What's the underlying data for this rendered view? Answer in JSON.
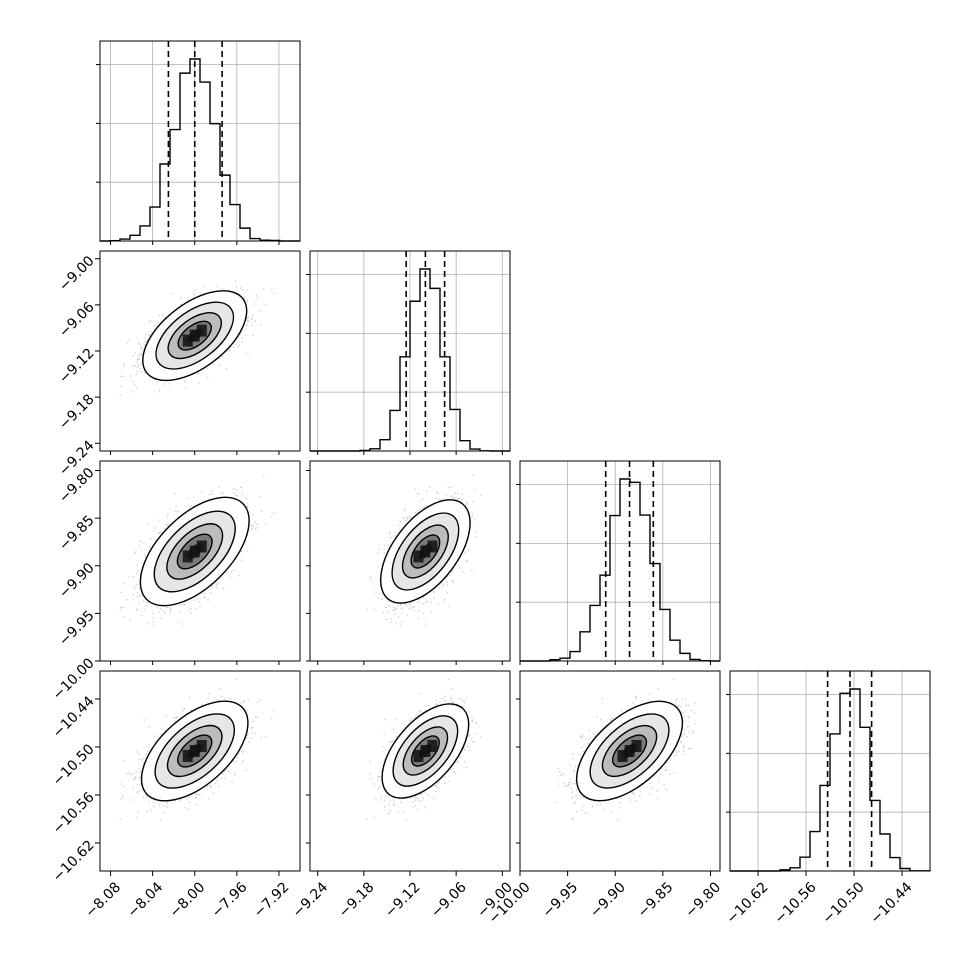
{
  "chart_data": {
    "type": "corner",
    "grid": true,
    "parameters": [
      {
        "range": [
          -8.09,
          -7.9
        ],
        "ticks": [
          -8.08,
          -8.04,
          -8.0,
          -7.96,
          -7.92
        ],
        "tick_labels": [
          "−8.08",
          "−8.04",
          "−8.00",
          "−7.96",
          "−7.92"
        ],
        "mean": -8.0,
        "std": 0.0205,
        "quantiles": [
          -8.025,
          -8.0,
          -7.974
        ]
      },
      {
        "range": [
          -9.25,
          -8.99
        ],
        "ticks": [
          -9.24,
          -9.18,
          -9.12,
          -9.06,
          -9.0
        ],
        "tick_labels": [
          "−9.24",
          "−9.18",
          "−9.12",
          "−9.06",
          "−9.00"
        ],
        "mean": -9.1,
        "std": 0.0215,
        "quantiles": [
          -9.125,
          -9.1,
          -9.075
        ]
      },
      {
        "range": [
          -10.0,
          -9.79
        ],
        "ticks": [
          -10.0,
          -9.95,
          -9.9,
          -9.85,
          -9.8
        ],
        "tick_labels": [
          "−10.00",
          "−9.95",
          "−9.90",
          "−9.85",
          "−9.80"
        ],
        "mean": -9.885,
        "std": 0.0225,
        "quantiles": [
          -9.91,
          -9.885,
          -9.86
        ]
      },
      {
        "range": [
          -10.655,
          -10.405
        ],
        "ticks": [
          -10.62,
          -10.56,
          -10.5,
          -10.44
        ],
        "tick_labels": [
          "−10.62",
          "−10.56",
          "−10.50",
          "−10.44"
        ],
        "mean": -10.505,
        "std": 0.024,
        "quantiles": [
          -10.533,
          -10.505,
          -10.478
        ]
      }
    ],
    "correlation": 0.55,
    "colors": {
      "line": "#000000",
      "grid": "#b0b0b0",
      "samples": "#8c8c8c"
    }
  }
}
